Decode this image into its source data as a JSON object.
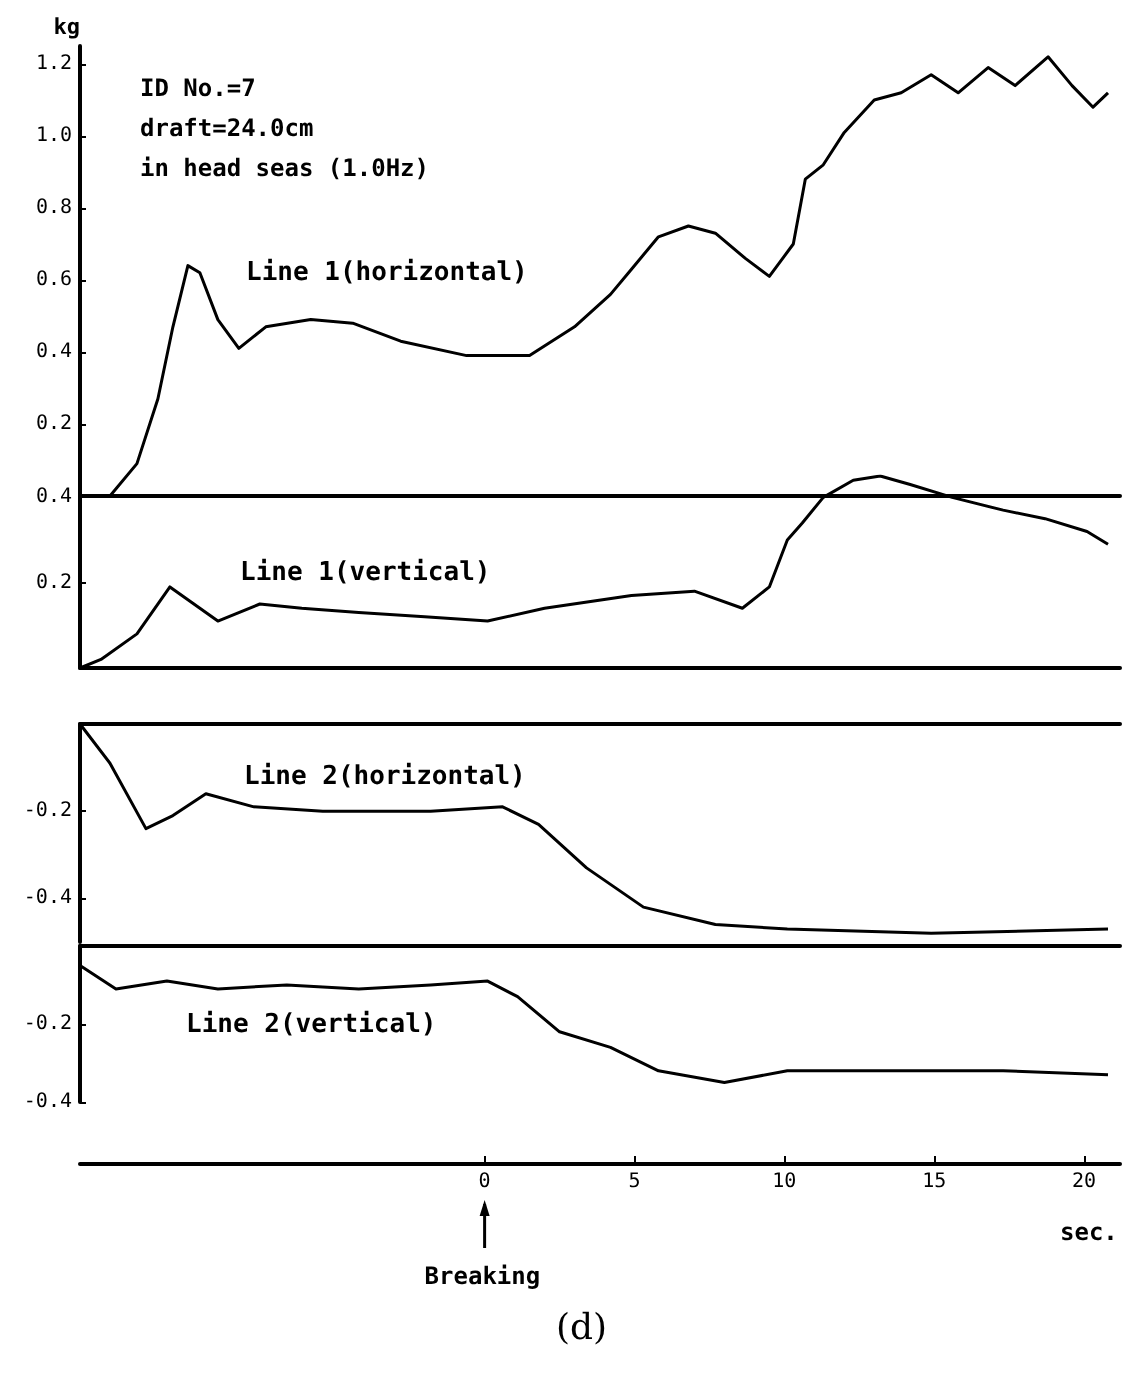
{
  "chart_data": [
    {
      "type": "line",
      "ylabel": "kg",
      "xlim": [
        -13.5,
        21.2
      ],
      "ylim": [
        0,
        1.25
      ],
      "yticks": [
        0.2,
        0.4,
        0.6,
        0.8,
        {
          "value": 1,
          "label": "1.0"
        },
        1.2
      ],
      "tick_labels": "y",
      "annotations": [
        "ID No.=7",
        "draft=24.0cm",
        "in head seas (1.0Hz)"
      ],
      "series": [
        {
          "name": "Line 1(horizontal)",
          "color": "#000000",
          "x": [
            -12.5,
            -11.6,
            -10.9,
            -10.4,
            -9.9,
            -9.5,
            -8.9,
            -8.2,
            -7.3,
            -5.8,
            -4.4,
            -2.8,
            -0.6,
            1.5,
            3.0,
            4.2,
            4.9,
            5.8,
            6.8,
            7.7,
            8.7,
            9.5,
            10.3,
            10.7,
            11.3,
            12.0,
            13.0,
            13.9,
            14.9,
            15.8,
            16.8,
            17.7,
            18.8,
            19.6,
            20.3,
            20.8
          ],
          "values": [
            0,
            0.09,
            0.27,
            0.47,
            0.64,
            0.62,
            0.49,
            0.41,
            0.47,
            0.49,
            0.48,
            0.43,
            0.39,
            0.39,
            0.47,
            0.56,
            0.63,
            0.72,
            0.75,
            0.73,
            0.66,
            0.61,
            0.7,
            0.88,
            0.92,
            1.01,
            1.1,
            1.12,
            1.17,
            1.12,
            1.19,
            1.14,
            1.22,
            1.14,
            1.08,
            1.12
          ]
        }
      ]
    },
    {
      "type": "line",
      "xlim": [
        -13.5,
        21.2
      ],
      "ylim": [
        0,
        0.45
      ],
      "yticks": [
        0.2,
        0.4
      ],
      "tick_labels": "y",
      "series": [
        {
          "name": "Line 1(vertical)",
          "color": "#000000",
          "x": [
            -13.5,
            -12.8,
            -11.6,
            -10.5,
            -9.9,
            -8.9,
            -7.5,
            -6.1,
            -4.2,
            -2.0,
            0.1,
            2.0,
            4.9,
            7.0,
            8.6,
            9.5,
            10.1,
            10.6,
            11.3,
            12.3,
            13.2,
            14.2,
            15.6,
            17.3,
            18.7,
            20.1,
            20.8
          ],
          "values": [
            0,
            0.02,
            0.08,
            0.19,
            0.16,
            0.11,
            0.15,
            0.14,
            0.13,
            0.12,
            0.11,
            0.14,
            0.17,
            0.18,
            0.14,
            0.19,
            0.3,
            0.34,
            0.4,
            0.44,
            0.45,
            0.43,
            0.4,
            0.37,
            0.35,
            0.32,
            0.29
          ]
        }
      ]
    },
    {
      "type": "line",
      "xlim": [
        -13.5,
        21.2
      ],
      "ylim": [
        -0.5,
        0
      ],
      "yticks": [
        -0.2,
        -0.4
      ],
      "tick_labels": "y",
      "series": [
        {
          "name": "Line 2(horizontal)",
          "color": "#000000",
          "x": [
            -13.5,
            -12.5,
            -11.3,
            -10.4,
            -9.3,
            -7.7,
            -5.4,
            -1.8,
            0.6,
            1.8,
            3.4,
            5.3,
            7.7,
            10.1,
            14.9,
            20.8
          ],
          "values": [
            0,
            -0.09,
            -0.24,
            -0.21,
            -0.16,
            -0.19,
            -0.2,
            -0.2,
            -0.19,
            -0.23,
            -0.33,
            -0.42,
            -0.46,
            -0.47,
            -0.48,
            -0.47
          ]
        }
      ]
    },
    {
      "type": "line",
      "xlim": [
        -13.5,
        21.2
      ],
      "ylim": [
        -0.4,
        0
      ],
      "yticks": [
        -0.2,
        -0.4
      ],
      "xticks": [
        0,
        5,
        10,
        15,
        20
      ],
      "xlabel": "sec.",
      "annotations": [
        {
          "text": "Breaking",
          "x": 0
        },
        "(d)"
      ],
      "series": [
        {
          "name": "Line 2(vertical)",
          "color": "#000000",
          "x": [
            -13.5,
            -12.3,
            -10.6,
            -8.9,
            -6.6,
            -4.2,
            -1.8,
            0.1,
            1.1,
            2.5,
            4.2,
            5.8,
            8.0,
            10.1,
            12.5,
            17.3,
            20.8
          ],
          "values": [
            -0.05,
            -0.11,
            -0.09,
            -0.11,
            -0.1,
            -0.11,
            -0.1,
            -0.09,
            -0.13,
            -0.22,
            -0.26,
            -0.32,
            -0.35,
            -0.32,
            -0.32,
            -0.32,
            -0.33
          ]
        }
      ]
    }
  ]
}
